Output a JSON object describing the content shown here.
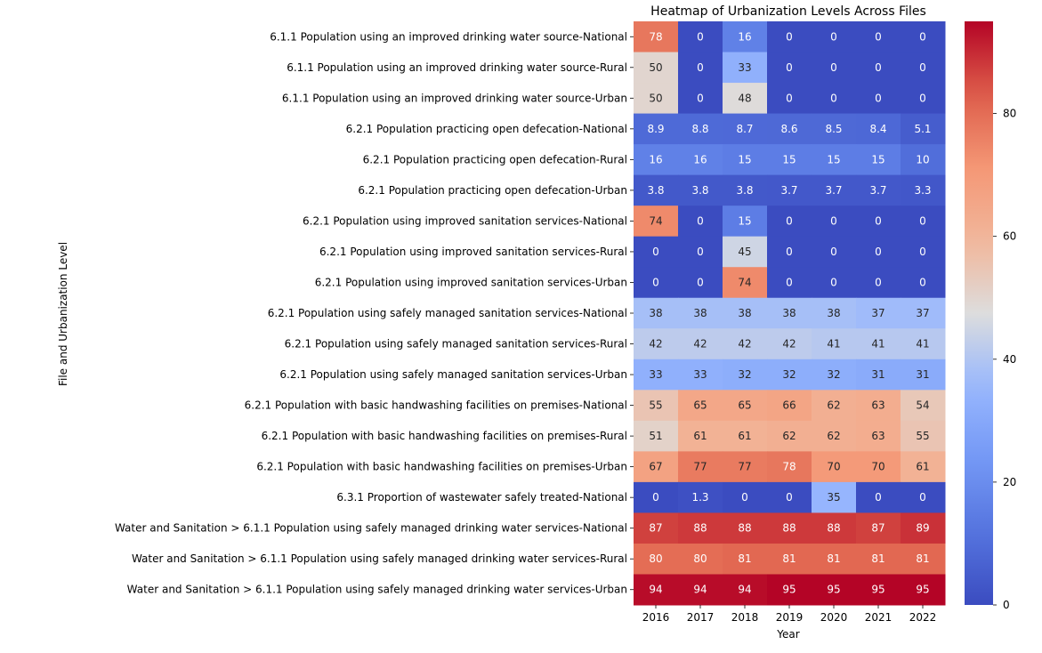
{
  "chart_data": {
    "type": "heatmap",
    "title": "Heatmap of Urbanization Levels Across Files",
    "xlabel": "Year",
    "ylabel": "File and Urbanization Level",
    "x": [
      "2016",
      "2017",
      "2018",
      "2019",
      "2020",
      "2021",
      "2022"
    ],
    "y": [
      "6.1.1 Population using an improved drinking water source-National",
      "6.1.1 Population using an improved drinking water source-Rural",
      "6.1.1 Population using an improved drinking water source-Urban",
      "6.2.1 Population practicing open defecation-National",
      "6.2.1 Population practicing open defecation-Rural",
      "6.2.1 Population practicing open defecation-Urban",
      "6.2.1 Population using improved sanitation services-National",
      "6.2.1 Population using improved sanitation services-Rural",
      "6.2.1 Population using improved sanitation services-Urban",
      "6.2.1 Population using safely managed sanitation services-National",
      "6.2.1 Population using safely managed sanitation services-Rural",
      "6.2.1 Population using safely managed sanitation services-Urban",
      "6.2.1 Population with basic handwashing facilities on premises-National",
      "6.2.1 Population with basic handwashing facilities on premises-Rural",
      "6.2.1 Population with basic handwashing facilities on premises-Urban",
      "6.3.1 Proportion of wastewater safely treated-National",
      "Water and Sanitation > 6.1.1 Population using safely managed drinking water services-National",
      "Water and Sanitation > 6.1.1 Population using safely managed drinking water services-Rural",
      "Water and Sanitation > 6.1.1 Population using safely managed drinking water services-Urban"
    ],
    "values": [
      [
        78,
        0,
        16,
        0,
        0,
        0,
        0
      ],
      [
        50,
        0,
        33,
        0,
        0,
        0,
        0
      ],
      [
        50,
        0,
        48,
        0,
        0,
        0,
        0
      ],
      [
        8.9,
        8.8,
        8.7,
        8.6,
        8.5,
        8.4,
        5.1
      ],
      [
        16,
        16,
        15,
        15,
        15,
        15,
        10
      ],
      [
        3.8,
        3.8,
        3.8,
        3.7,
        3.7,
        3.7,
        3.3
      ],
      [
        74,
        0,
        15,
        0,
        0,
        0,
        0
      ],
      [
        0,
        0,
        45,
        0,
        0,
        0,
        0
      ],
      [
        0,
        0,
        74,
        0,
        0,
        0,
        0
      ],
      [
        38,
        38,
        38,
        38,
        38,
        37,
        37
      ],
      [
        42,
        42,
        42,
        42,
        41,
        41,
        41
      ],
      [
        33,
        33,
        32,
        32,
        32,
        31,
        31
      ],
      [
        55,
        65,
        65,
        66,
        62,
        63,
        54
      ],
      [
        51,
        61,
        61,
        62,
        62,
        63,
        55
      ],
      [
        67,
        77,
        77,
        78,
        70,
        70,
        61
      ],
      [
        0,
        1.3,
        0,
        0,
        35,
        0,
        0
      ],
      [
        87,
        88,
        88,
        88,
        88,
        87,
        89
      ],
      [
        80,
        80,
        81,
        81,
        81,
        81,
        81
      ],
      [
        94,
        94,
        94,
        95,
        95,
        95,
        95
      ]
    ],
    "colormap": "coolwarm",
    "color_range": [
      0,
      95
    ],
    "colorbar_ticks": [
      "0",
      "20",
      "40",
      "60",
      "80"
    ],
    "grid": false,
    "legend": "colorbar-right"
  }
}
